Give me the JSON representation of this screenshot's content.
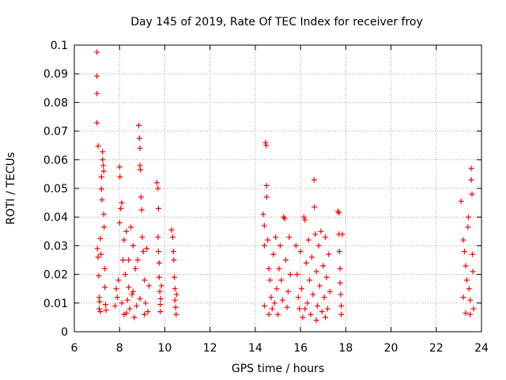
{
  "chart_data": {
    "type": "scatter",
    "title": "Day 145 of 2019, Rate Of TEC Index for receiver froy",
    "xlabel": "GPS time / hours",
    "ylabel": "ROTI / TECUs",
    "xlim": [
      6,
      24
    ],
    "ylim": [
      0,
      0.1
    ],
    "x_ticks": [
      6,
      8,
      10,
      12,
      14,
      16,
      18,
      20,
      22,
      24
    ],
    "y_ticks": [
      0,
      0.01,
      0.02,
      0.03,
      0.04,
      0.05,
      0.06,
      0.07,
      0.08,
      0.09,
      0.1
    ],
    "x_tick_labels": [
      "6",
      "8",
      "10",
      "12",
      "14",
      "16",
      "18",
      "20",
      "22",
      "24"
    ],
    "y_tick_labels": [
      "0",
      "0.01",
      "0.02",
      "0.03",
      "0.04",
      "0.05",
      "0.06",
      "0.07",
      "0.08",
      "0.09",
      "0.1"
    ],
    "grid": true,
    "marker": "+",
    "color": "#ff0000",
    "series": [
      {
        "name": "ROTI",
        "points": [
          [
            7.0,
            0.0975
          ],
          [
            7.0,
            0.0892
          ],
          [
            7.0,
            0.0831
          ],
          [
            7.0,
            0.0729
          ],
          [
            7.05,
            0.0648
          ],
          [
            7.02,
            0.029
          ],
          [
            7.05,
            0.026
          ],
          [
            7.08,
            0.0195
          ],
          [
            7.1,
            0.012
          ],
          [
            7.1,
            0.008
          ],
          [
            7.12,
            0.0105
          ],
          [
            7.15,
            0.007
          ],
          [
            7.15,
            0.0325
          ],
          [
            7.18,
            0.027
          ],
          [
            7.2,
            0.054
          ],
          [
            7.2,
            0.0498
          ],
          [
            7.22,
            0.046
          ],
          [
            7.25,
            0.06
          ],
          [
            7.25,
            0.0628
          ],
          [
            7.28,
            0.058
          ],
          [
            7.3,
            0.056
          ],
          [
            7.3,
            0.041
          ],
          [
            7.32,
            0.0365
          ],
          [
            7.35,
            0.022
          ],
          [
            7.35,
            0.0155
          ],
          [
            7.38,
            0.0095
          ],
          [
            7.4,
            0.0075
          ],
          [
            7.8,
            0.009
          ],
          [
            7.85,
            0.015
          ],
          [
            7.9,
            0.012
          ],
          [
            7.95,
            0.018
          ],
          [
            8.0,
            0.038
          ],
          [
            8.0,
            0.0575
          ],
          [
            8.02,
            0.054
          ],
          [
            8.05,
            0.043
          ],
          [
            8.1,
            0.045
          ],
          [
            8.15,
            0.025
          ],
          [
            8.2,
            0.032
          ],
          [
            8.25,
            0.02
          ],
          [
            8.3,
            0.035
          ],
          [
            8.35,
            0.011
          ],
          [
            8.4,
            0.0155
          ],
          [
            8.45,
            0.008
          ],
          [
            8.5,
            0.0365
          ],
          [
            8.55,
            0.013
          ],
          [
            8.6,
            0.03
          ],
          [
            8.65,
            0.005
          ],
          [
            8.7,
            0.022
          ],
          [
            8.75,
            0.009
          ],
          [
            8.8,
            0.025
          ],
          [
            8.85,
            0.072
          ],
          [
            8.88,
            0.0675
          ],
          [
            8.9,
            0.064
          ],
          [
            8.9,
            0.058
          ],
          [
            8.92,
            0.0565
          ],
          [
            8.95,
            0.047
          ],
          [
            8.98,
            0.0425
          ],
          [
            9.0,
            0.033
          ],
          [
            9.05,
            0.028
          ],
          [
            9.1,
            0.018
          ],
          [
            9.15,
            0.01
          ],
          [
            9.2,
            0.029
          ],
          [
            9.25,
            0.007
          ],
          [
            9.3,
            0.016
          ],
          [
            8.1,
            0.01
          ],
          [
            8.3,
            0.0065
          ],
          [
            8.6,
            0.014
          ],
          [
            8.9,
            0.0115
          ],
          [
            9.1,
            0.006
          ],
          [
            8.2,
            0.006
          ],
          [
            8.4,
            0.025
          ],
          [
            9.65,
            0.052
          ],
          [
            9.7,
            0.05
          ],
          [
            9.72,
            0.043
          ],
          [
            9.7,
            0.033
          ],
          [
            9.72,
            0.028
          ],
          [
            9.75,
            0.024
          ],
          [
            9.75,
            0.019
          ],
          [
            9.78,
            0.014
          ],
          [
            9.8,
            0.0095
          ],
          [
            9.8,
            0.007
          ],
          [
            9.82,
            0.0115
          ],
          [
            9.85,
            0.016
          ],
          [
            10.3,
            0.0355
          ],
          [
            10.35,
            0.033
          ],
          [
            10.38,
            0.028
          ],
          [
            10.4,
            0.025
          ],
          [
            10.42,
            0.019
          ],
          [
            10.45,
            0.015
          ],
          [
            10.45,
            0.011
          ],
          [
            10.48,
            0.0085
          ],
          [
            10.5,
            0.006
          ],
          [
            10.52,
            0.013
          ],
          [
            14.35,
            0.041
          ],
          [
            14.4,
            0.037
          ],
          [
            14.4,
            0.03
          ],
          [
            14.45,
            0.066
          ],
          [
            14.48,
            0.065
          ],
          [
            14.5,
            0.051
          ],
          [
            14.5,
            0.047
          ],
          [
            14.55,
            0.032
          ],
          [
            14.6,
            0.022
          ],
          [
            14.65,
            0.018
          ],
          [
            14.7,
            0.012
          ],
          [
            14.75,
            0.008
          ],
          [
            14.8,
            0.027
          ],
          [
            14.85,
            0.01
          ],
          [
            14.9,
            0.033
          ],
          [
            14.95,
            0.015
          ],
          [
            15.0,
            0.006
          ],
          [
            15.05,
            0.022
          ],
          [
            15.1,
            0.03
          ],
          [
            15.15,
            0.018
          ],
          [
            15.2,
            0.011
          ],
          [
            15.25,
            0.04
          ],
          [
            15.3,
            0.0395
          ],
          [
            15.35,
            0.025
          ],
          [
            15.4,
            0.0085
          ],
          [
            15.45,
            0.014
          ],
          [
            15.5,
            0.033
          ],
          [
            15.55,
            0.02
          ],
          [
            14.4,
            0.009
          ],
          [
            14.6,
            0.006
          ],
          [
            15.8,
            0.03
          ],
          [
            15.85,
            0.02
          ],
          [
            15.9,
            0.012
          ],
          [
            15.95,
            0.008
          ],
          [
            16.0,
            0.028
          ],
          [
            16.05,
            0.015
          ],
          [
            16.1,
            0.005
          ],
          [
            16.15,
            0.04
          ],
          [
            16.2,
            0.039
          ],
          [
            16.25,
            0.024
          ],
          [
            16.3,
            0.01
          ],
          [
            16.35,
            0.032
          ],
          [
            16.4,
            0.018
          ],
          [
            16.45,
            0.006
          ],
          [
            16.5,
            0.026
          ],
          [
            16.55,
            0.013
          ],
          [
            16.6,
            0.053
          ],
          [
            16.62,
            0.0435
          ],
          [
            16.65,
            0.034
          ],
          [
            16.7,
            0.021
          ],
          [
            16.75,
            0.009
          ],
          [
            16.8,
            0.03
          ],
          [
            16.85,
            0.016
          ],
          [
            16.9,
            0.035
          ],
          [
            16.95,
            0.007
          ],
          [
            17.0,
            0.023
          ],
          [
            17.05,
            0.012
          ],
          [
            17.1,
            0.033
          ],
          [
            17.15,
            0.019
          ],
          [
            17.2,
            0.008
          ],
          [
            17.25,
            0.027
          ],
          [
            17.3,
            0.014
          ],
          [
            16.2,
            0.008
          ],
          [
            16.7,
            0.004
          ],
          [
            17.1,
            0.005
          ],
          [
            17.65,
            0.042
          ],
          [
            17.7,
            0.0415
          ],
          [
            17.7,
            0.034
          ],
          [
            17.72,
            0.028
          ],
          [
            17.75,
            0.022
          ],
          [
            17.75,
            0.017
          ],
          [
            17.78,
            0.013
          ],
          [
            17.8,
            0.009
          ],
          [
            17.8,
            0.006
          ],
          [
            17.85,
            0.034
          ],
          [
            23.1,
            0.0455
          ],
          [
            23.2,
            0.032
          ],
          [
            23.25,
            0.028
          ],
          [
            23.3,
            0.023
          ],
          [
            23.35,
            0.018
          ],
          [
            23.4,
            0.0365
          ],
          [
            23.42,
            0.04
          ],
          [
            23.45,
            0.015
          ],
          [
            23.5,
            0.011
          ],
          [
            23.55,
            0.057
          ],
          [
            23.55,
            0.053
          ],
          [
            23.58,
            0.048
          ],
          [
            23.6,
            0.027
          ],
          [
            23.62,
            0.021
          ],
          [
            23.65,
            0.008
          ],
          [
            23.3,
            0.0065
          ],
          [
            23.5,
            0.006
          ],
          [
            23.2,
            0.012
          ]
        ]
      }
    ]
  }
}
